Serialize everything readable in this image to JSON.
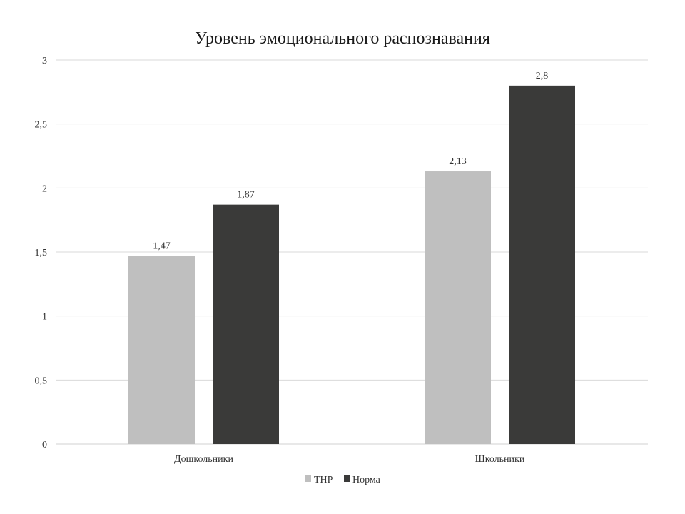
{
  "chart_data": {
    "type": "bar",
    "title": "Уровень эмоционального распознавания",
    "categories": [
      "Дошкольники",
      "Школьники"
    ],
    "series": [
      {
        "name": "ТНР",
        "values": [
          1.47,
          2.13
        ],
        "labels": [
          "1,47",
          "2,13"
        ],
        "color": "#bfbfbf"
      },
      {
        "name": "Норма",
        "values": [
          1.87,
          2.8
        ],
        "labels": [
          "1,87",
          "2,8"
        ],
        "color": "#3a3a39"
      }
    ],
    "ylim": [
      0,
      3
    ],
    "yticks": [
      0,
      0.5,
      1,
      1.5,
      2,
      2.5,
      3
    ],
    "ytick_labels": [
      "0",
      "0,5",
      "1",
      "1,5",
      "2",
      "2,5",
      "3"
    ],
    "grid": true,
    "legend_position": "bottom"
  }
}
